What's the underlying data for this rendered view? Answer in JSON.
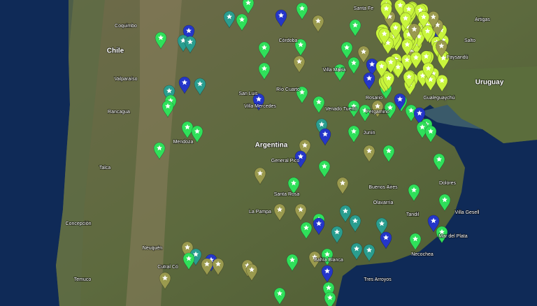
{
  "map": {
    "labels": [
      "Chile",
      "Argentina",
      "Uruguay",
      "Buenos Aires",
      "Mendoza",
      "Neuquén",
      "Córdoba",
      "Santa Fe",
      "Rosario",
      "San Luis",
      "La Pampa",
      "Santa Rosa",
      "Mar del Plata",
      "Bahía Blanca",
      "Tandil",
      "Olavarría",
      "Junín",
      "Villa María",
      "Río Cuarto",
      "Coquimbo",
      "Valparaíso",
      "Concepción",
      "Paysandú",
      "Villa Mercedes",
      "Cutral Có",
      "Necochea",
      "Venado Tuerto",
      "Rancagua",
      "Talca",
      "Temuco",
      "Artigas",
      "Salto",
      "Gualeguaychú",
      "Pergamino",
      "Dolores",
      "Villa Gesell",
      "Tres Arroyos",
      "General Pico"
    ]
  }
}
